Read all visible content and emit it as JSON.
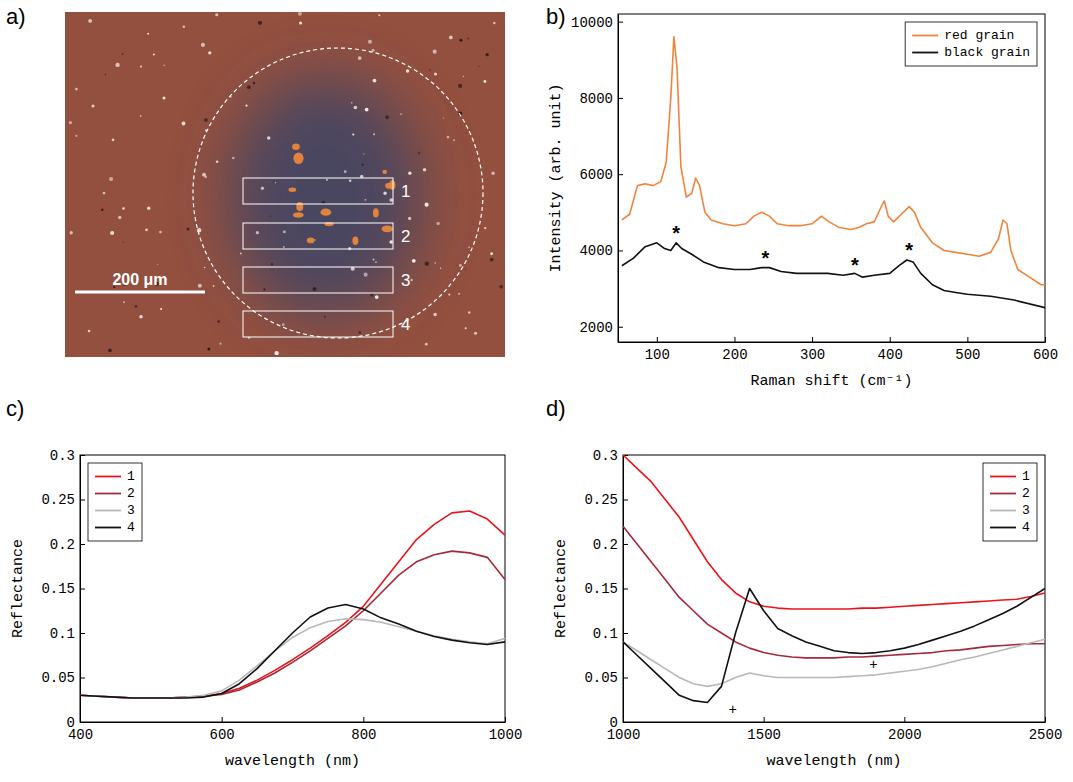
{
  "chart_data": [
    {
      "type": "image",
      "panel": "a)",
      "scale_bar": "200 μm",
      "regions": [
        "1",
        "2",
        "3",
        "4"
      ]
    },
    {
      "type": "line",
      "panel": "b)",
      "x_label": "Raman shift (cm⁻¹)",
      "y_label": "Intensity (arb. unit)",
      "xlim": [
        50,
        600
      ],
      "xticks": [
        100,
        200,
        300,
        400,
        500,
        600
      ],
      "ylim": [
        1600,
        10200
      ],
      "yticks": [
        2000,
        4000,
        6000,
        8000,
        10000
      ],
      "legend": "top-right",
      "grid": false,
      "series": [
        {
          "name": "red grain",
          "color": "#f0843c",
          "x": [
            55,
            65,
            75,
            85,
            95,
            105,
            112,
            118,
            122,
            126,
            131,
            138,
            145,
            150,
            155,
            162,
            170,
            185,
            200,
            215,
            225,
            235,
            245,
            255,
            270,
            285,
            300,
            312,
            322,
            335,
            350,
            360,
            370,
            380,
            388,
            393,
            398,
            405,
            415,
            425,
            432,
            440,
            455,
            470,
            485,
            500,
            515,
            530,
            540,
            546,
            551,
            556,
            565,
            580,
            595,
            600
          ],
          "values": [
            4800,
            4950,
            5700,
            5750,
            5700,
            5800,
            6300,
            8000,
            9600,
            8800,
            6200,
            5400,
            5500,
            5900,
            5700,
            5000,
            4800,
            4700,
            4650,
            4700,
            4900,
            5000,
            4900,
            4700,
            4650,
            4650,
            4700,
            4900,
            4750,
            4600,
            4550,
            4600,
            4700,
            4750,
            5100,
            5300,
            4900,
            4750,
            4950,
            5150,
            5000,
            4600,
            4200,
            4000,
            3950,
            3900,
            3850,
            3950,
            4300,
            4800,
            4700,
            4000,
            3500,
            3300,
            3100,
            3100
          ]
        },
        {
          "name": "black grain",
          "color": "#111111",
          "x": [
            55,
            70,
            85,
            100,
            110,
            118,
            125,
            132,
            145,
            160,
            180,
            200,
            220,
            235,
            245,
            260,
            280,
            300,
            320,
            340,
            355,
            365,
            380,
            400,
            412,
            422,
            430,
            440,
            455,
            470,
            485,
            500,
            530,
            560,
            600
          ],
          "values": [
            3600,
            3800,
            4100,
            4200,
            4050,
            4000,
            4200,
            4050,
            3900,
            3700,
            3550,
            3500,
            3500,
            3550,
            3550,
            3450,
            3400,
            3400,
            3400,
            3350,
            3400,
            3300,
            3350,
            3400,
            3600,
            3750,
            3700,
            3400,
            3100,
            2950,
            2900,
            2850,
            2800,
            2700,
            2500
          ]
        }
      ],
      "annotations": [
        {
          "text": "*",
          "x": 125,
          "y": 4500
        },
        {
          "text": "*",
          "x": 240,
          "y": 3850
        },
        {
          "text": "*",
          "x": 355,
          "y": 3650
        },
        {
          "text": "*",
          "x": 425,
          "y": 4050
        }
      ]
    },
    {
      "type": "line",
      "panel": "c)",
      "x_label": "wavelength (nm)",
      "y_label": "Reflectance",
      "xlim": [
        400,
        1000
      ],
      "xticks": [
        400,
        600,
        800,
        1000
      ],
      "ylim": [
        0,
        0.3
      ],
      "yticks": [
        0,
        0.05,
        0.1,
        0.15,
        0.2,
        0.25,
        0.3
      ],
      "legend": "top-left",
      "grid": false,
      "x": [
        400,
        425,
        450,
        475,
        500,
        525,
        550,
        575,
        600,
        625,
        650,
        675,
        700,
        725,
        750,
        775,
        800,
        825,
        850,
        875,
        900,
        925,
        950,
        975,
        1000
      ],
      "series": [
        {
          "name": "1",
          "color": "#e8151b",
          "values": [
            0.03,
            0.029,
            0.028,
            0.027,
            0.027,
            0.027,
            0.028,
            0.029,
            0.032,
            0.038,
            0.047,
            0.058,
            0.07,
            0.083,
            0.097,
            0.112,
            0.13,
            0.155,
            0.18,
            0.205,
            0.222,
            0.235,
            0.237,
            0.228,
            0.21
          ]
        },
        {
          "name": "2",
          "color": "#a3293b",
          "values": [
            0.03,
            0.029,
            0.028,
            0.027,
            0.027,
            0.027,
            0.028,
            0.029,
            0.031,
            0.036,
            0.045,
            0.055,
            0.067,
            0.08,
            0.094,
            0.108,
            0.125,
            0.145,
            0.165,
            0.18,
            0.188,
            0.192,
            0.19,
            0.185,
            0.16
          ]
        },
        {
          "name": "3",
          "color": "#b8b8b8",
          "values": [
            0.03,
            0.029,
            0.028,
            0.027,
            0.027,
            0.027,
            0.028,
            0.03,
            0.035,
            0.047,
            0.063,
            0.08,
            0.095,
            0.106,
            0.113,
            0.116,
            0.115,
            0.112,
            0.107,
            0.102,
            0.097,
            0.093,
            0.09,
            0.088,
            0.094
          ]
        },
        {
          "name": "4",
          "color": "#111111",
          "values": [
            0.03,
            0.029,
            0.028,
            0.027,
            0.027,
            0.027,
            0.027,
            0.028,
            0.032,
            0.043,
            0.06,
            0.08,
            0.1,
            0.118,
            0.128,
            0.132,
            0.127,
            0.117,
            0.11,
            0.102,
            0.096,
            0.092,
            0.089,
            0.087,
            0.09
          ]
        }
      ]
    },
    {
      "type": "line",
      "panel": "d)",
      "x_label": "wavelength (nm)",
      "y_label": "Reflectance",
      "xlim": [
        1000,
        2500
      ],
      "xticks": [
        1000,
        1500,
        2000,
        2500
      ],
      "ylim": [
        0,
        0.3
      ],
      "yticks": [
        0,
        0.05,
        0.1,
        0.15,
        0.2,
        0.25,
        0.3
      ],
      "legend": "top-right",
      "grid": false,
      "x": [
        1000,
        1050,
        1100,
        1150,
        1200,
        1250,
        1300,
        1350,
        1400,
        1450,
        1500,
        1550,
        1600,
        1650,
        1700,
        1750,
        1800,
        1850,
        1900,
        1950,
        2000,
        2050,
        2100,
        2150,
        2200,
        2250,
        2300,
        2350,
        2400,
        2450,
        2500
      ],
      "series": [
        {
          "name": "1",
          "color": "#e8151b",
          "values": [
            0.3,
            0.285,
            0.27,
            0.25,
            0.23,
            0.205,
            0.18,
            0.16,
            0.145,
            0.135,
            0.13,
            0.128,
            0.127,
            0.127,
            0.127,
            0.127,
            0.127,
            0.128,
            0.128,
            0.129,
            0.13,
            0.131,
            0.132,
            0.133,
            0.134,
            0.135,
            0.136,
            0.137,
            0.138,
            0.141,
            0.145
          ]
        },
        {
          "name": "2",
          "color": "#a3293b",
          "values": [
            0.22,
            0.2,
            0.18,
            0.16,
            0.14,
            0.125,
            0.11,
            0.1,
            0.09,
            0.083,
            0.078,
            0.075,
            0.073,
            0.072,
            0.072,
            0.072,
            0.073,
            0.073,
            0.074,
            0.075,
            0.076,
            0.077,
            0.078,
            0.08,
            0.081,
            0.083,
            0.085,
            0.086,
            0.087,
            0.088,
            0.088
          ]
        },
        {
          "name": "3",
          "color": "#b8b8b8",
          "values": [
            0.09,
            0.08,
            0.07,
            0.06,
            0.05,
            0.043,
            0.04,
            0.043,
            0.05,
            0.055,
            0.052,
            0.05,
            0.05,
            0.05,
            0.05,
            0.05,
            0.051,
            0.052,
            0.053,
            0.055,
            0.057,
            0.059,
            0.062,
            0.066,
            0.07,
            0.073,
            0.077,
            0.081,
            0.085,
            0.089,
            0.093
          ]
        },
        {
          "name": "4",
          "color": "#111111",
          "values": [
            0.09,
            0.075,
            0.06,
            0.045,
            0.03,
            0.024,
            0.022,
            0.04,
            0.1,
            0.15,
            0.125,
            0.105,
            0.097,
            0.09,
            0.085,
            0.08,
            0.078,
            0.077,
            0.078,
            0.08,
            0.083,
            0.087,
            0.092,
            0.097,
            0.102,
            0.108,
            0.115,
            0.122,
            0.13,
            0.14,
            0.15
          ]
        }
      ],
      "annotations": [
        {
          "text": "+",
          "x": 1390,
          "y": 0.013
        },
        {
          "text": "+",
          "x": 1890,
          "y": 0.064
        }
      ]
    }
  ]
}
